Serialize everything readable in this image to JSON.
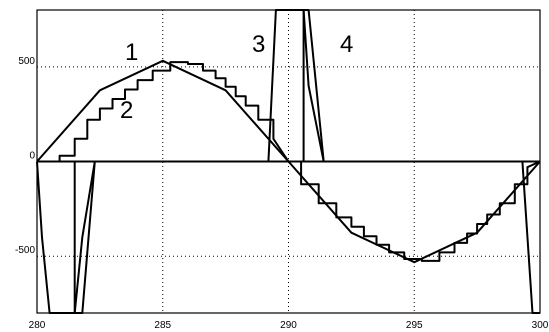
{
  "chart_data": {
    "type": "line",
    "title": "",
    "xlabel": "",
    "ylabel": "",
    "xlim": [
      280,
      300
    ],
    "ylim": [
      -800,
      800
    ],
    "x_ticks": [
      280,
      285,
      290,
      295,
      300
    ],
    "x_tick_labels": [
      "280",
      "285",
      "290",
      "295",
      "300"
    ],
    "y_ticks": [
      500,
      0,
      -500
    ],
    "y_tick_labels": [
      "500",
      "0",
      "-500"
    ],
    "grid": "dotted",
    "legend": "none",
    "curve_labels": [
      "1",
      "2",
      "3",
      "4"
    ],
    "series": [
      {
        "x": [
          280,
          282.5,
          285,
          287.5,
          290,
          292.5,
          295,
          297.5,
          300
        ],
        "y": [
          0,
          376,
          532,
          376,
          0,
          -376,
          -532,
          -376,
          0
        ]
      },
      {
        "x": [
          280,
          280.9,
          280.9,
          281.5,
          281.5,
          282.0,
          282.0,
          282.5,
          282.5,
          283.0,
          283.0,
          283.5,
          283.5,
          284.0,
          284.0,
          284.6,
          284.6,
          285.3,
          285.3,
          286.0,
          286.0,
          286.6,
          286.6,
          287.1,
          287.1,
          287.5,
          287.5,
          287.9,
          287.9,
          288.3,
          288.3,
          288.8,
          288.8,
          289.4,
          289.4,
          290.0,
          290.5,
          290.5,
          291.2,
          291.2,
          291.9,
          291.9,
          292.5,
          292.5,
          293.0,
          293.0,
          293.5,
          293.5,
          294.0,
          294.0,
          294.6,
          294.6,
          295.3,
          295.3,
          296.0,
          296.0,
          296.6,
          296.6,
          297.1,
          297.1,
          297.5,
          297.5,
          297.9,
          297.9,
          298.4,
          298.4,
          299.0,
          299.0,
          299.5,
          299.5,
          300
        ],
        "y": [
          0,
          0,
          30,
          30,
          120,
          120,
          220,
          220,
          280,
          280,
          330,
          330,
          380,
          380,
          430,
          430,
          480,
          480,
          525,
          525,
          515,
          515,
          480,
          480,
          440,
          440,
          395,
          395,
          345,
          345,
          295,
          295,
          220,
          220,
          120,
          0,
          0,
          -120,
          -120,
          -220,
          -220,
          -295,
          -295,
          -345,
          -345,
          -395,
          -395,
          -440,
          -440,
          -480,
          -480,
          -515,
          -515,
          -525,
          -525,
          -480,
          -480,
          -430,
          -430,
          -380,
          -380,
          -330,
          -330,
          -280,
          -280,
          -220,
          -220,
          -120,
          -120,
          -30,
          0
        ]
      },
      {
        "x": [
          280,
          280.2,
          280.5,
          281.5,
          281.5,
          281.8,
          282.3,
          289.2,
          289.5,
          290.6,
          290.6,
          290.8,
          291.4,
          299.3,
          299.7,
          300
        ],
        "y": [
          0,
          -400,
          -800,
          -800,
          -800,
          -400,
          0,
          0,
          800,
          800,
          800,
          400,
          0,
          0,
          -800,
          -800
        ]
      },
      {
        "x": [
          280,
          280.2,
          280.5,
          281.5,
          281.5,
          281.8,
          282.3,
          289.2,
          289.5,
          290.6,
          290.6,
          290.8,
          291.4,
          299.3,
          299.7,
          300
        ],
        "y": [
          0,
          0,
          0,
          0,
          -800,
          -800,
          0,
          0,
          0,
          0,
          800,
          800,
          0,
          0,
          0,
          0
        ]
      }
    ]
  }
}
